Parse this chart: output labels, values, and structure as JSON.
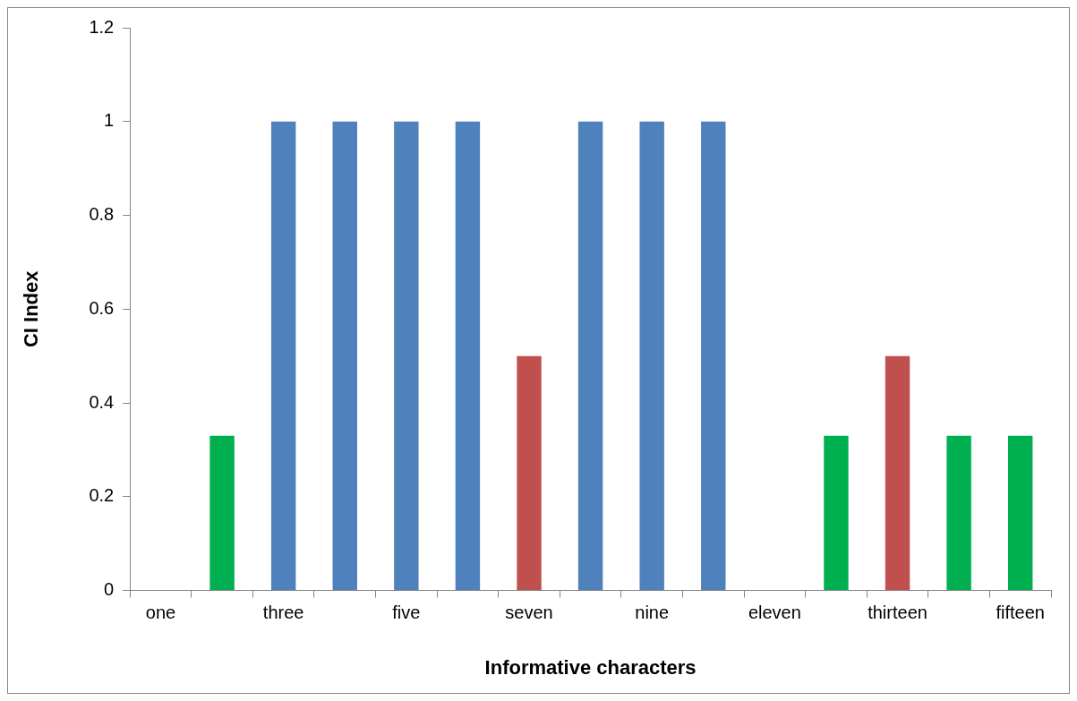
{
  "chart_data": {
    "type": "bar",
    "xlabel": "Informative characters",
    "ylabel": "CI Index",
    "categories": [
      "one",
      null,
      "three",
      null,
      "five",
      null,
      "seven",
      null,
      "nine",
      null,
      "eleven",
      null,
      "thirteen",
      null,
      "fifteen"
    ],
    "values": [
      0,
      0.33,
      1,
      1,
      1,
      1,
      0.5,
      1,
      1,
      1,
      0,
      0.33,
      0.5,
      0.33,
      0.33
    ],
    "colors": [
      "#4f81bd",
      "#00b050",
      "#4f81bd",
      "#4f81bd",
      "#4f81bd",
      "#4f81bd",
      "#c0504d",
      "#4f81bd",
      "#4f81bd",
      "#4f81bd",
      "#4f81bd",
      "#00b050",
      "#c0504d",
      "#00b050",
      "#00b050"
    ],
    "ylim": [
      0,
      1.2
    ],
    "yticks": [
      0,
      0.2,
      0.4,
      0.6,
      0.8,
      1,
      1.2
    ],
    "grid": false,
    "legend": false
  }
}
